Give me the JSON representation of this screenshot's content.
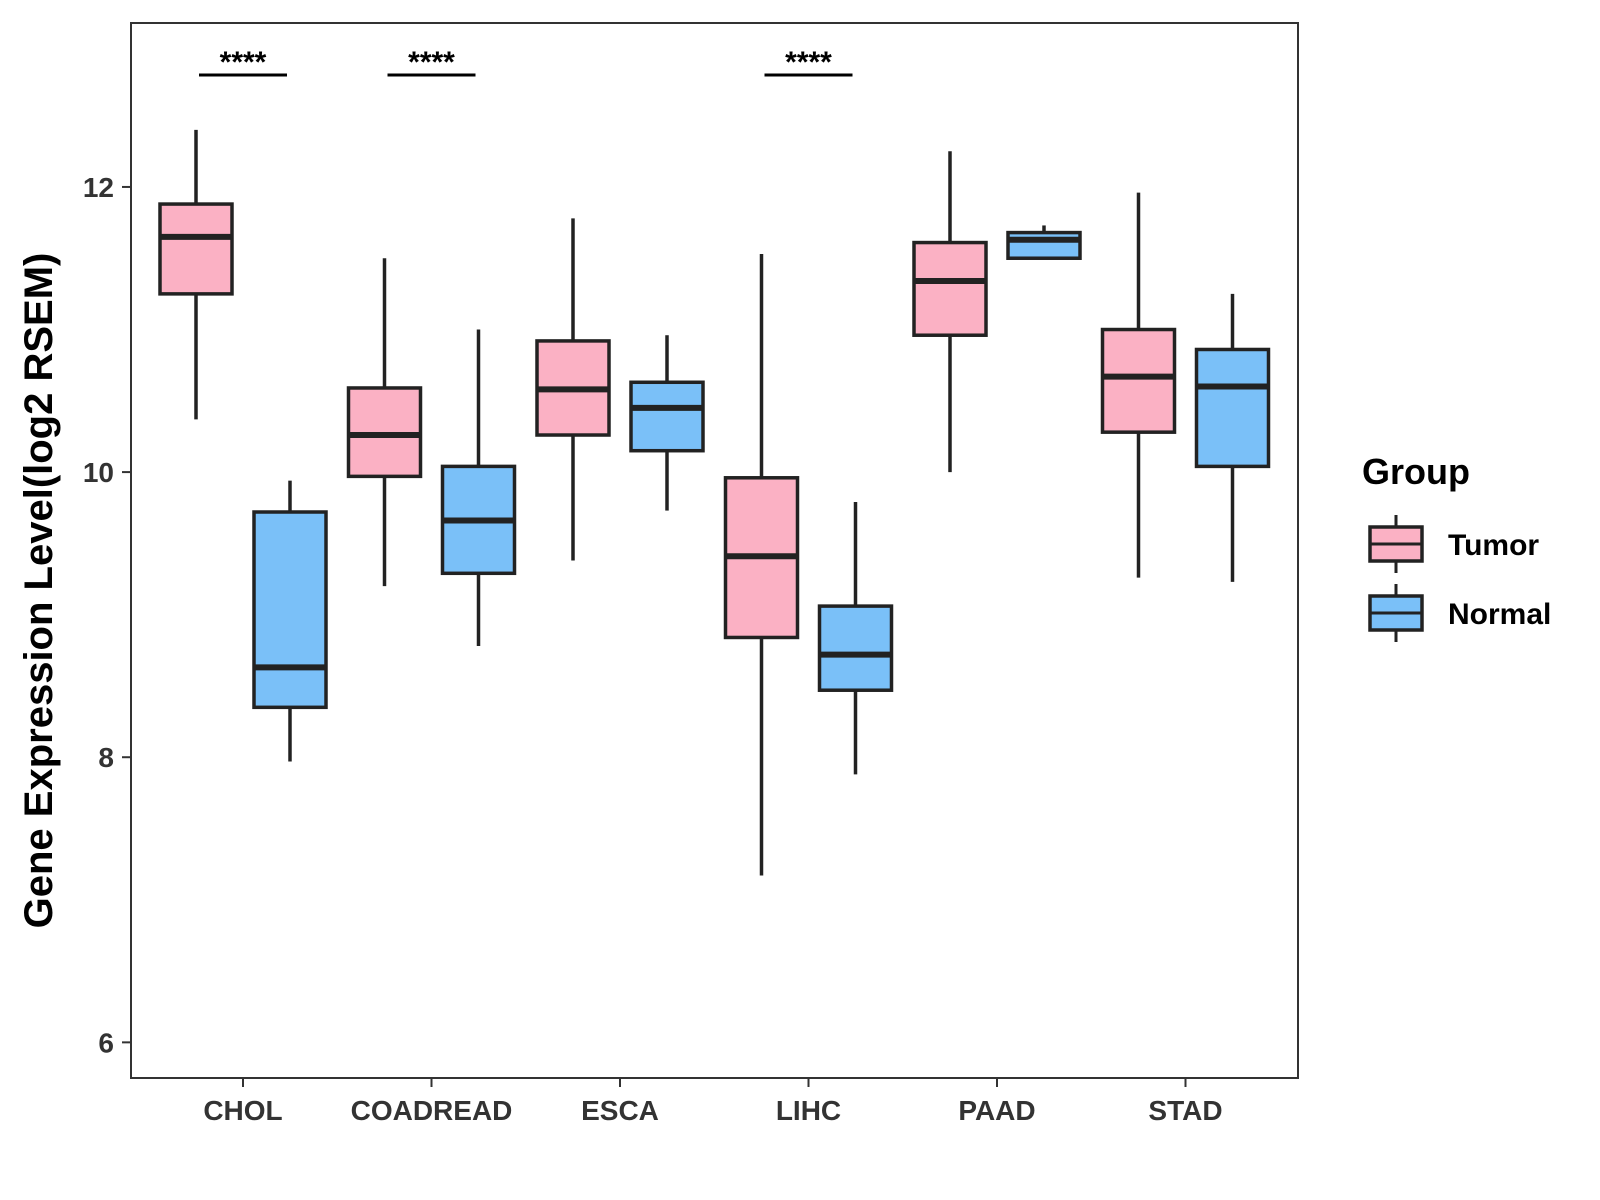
{
  "chart_data": {
    "type": "boxplot",
    "title": "",
    "xlabel": "",
    "ylabel": "Gene Expression Level(log2 RSEM)",
    "ylim": [
      5.75,
      13.15
    ],
    "yticks": [
      "6",
      "8",
      "10",
      "12"
    ],
    "ytick_values": [
      6,
      8,
      10,
      12
    ],
    "categories": [
      "CHOL",
      "COADREAD",
      "ESCA",
      "LIHC",
      "PAAD",
      "STAD"
    ],
    "series": [
      {
        "name": "Tumor",
        "color": "#FBB1C4",
        "boxes": [
          {
            "min": 10.37,
            "q1": 11.25,
            "median": 11.65,
            "q3": 11.88,
            "max": 12.4
          },
          {
            "min": 9.2,
            "q1": 9.97,
            "median": 10.26,
            "q3": 10.59,
            "max": 11.5
          },
          {
            "min": 9.38,
            "q1": 10.26,
            "median": 10.58,
            "q3": 10.92,
            "max": 11.78
          },
          {
            "min": 7.17,
            "q1": 8.84,
            "median": 9.41,
            "q3": 9.96,
            "max": 11.53
          },
          {
            "min": 10.0,
            "q1": 10.96,
            "median": 11.34,
            "q3": 11.61,
            "max": 12.25
          },
          {
            "min": 9.26,
            "q1": 10.28,
            "median": 10.67,
            "q3": 11.0,
            "max": 11.96
          }
        ]
      },
      {
        "name": "Normal",
        "color": "#7AC0F8",
        "boxes": [
          {
            "min": 7.97,
            "q1": 8.35,
            "median": 8.63,
            "q3": 9.72,
            "max": 9.94
          },
          {
            "min": 8.78,
            "q1": 9.29,
            "median": 9.66,
            "q3": 10.04,
            "max": 11.0
          },
          {
            "min": 9.73,
            "q1": 10.15,
            "median": 10.45,
            "q3": 10.63,
            "max": 10.96
          },
          {
            "min": 7.88,
            "q1": 8.47,
            "median": 8.72,
            "q3": 9.06,
            "max": 9.79
          },
          {
            "min": 11.5,
            "q1": 11.5,
            "median": 11.63,
            "q3": 11.68,
            "max": 11.73
          },
          {
            "min": 9.23,
            "q1": 10.04,
            "median": 10.6,
            "q3": 10.86,
            "max": 11.25
          }
        ]
      }
    ],
    "significance": [
      {
        "category": "CHOL",
        "label": "****"
      },
      {
        "category": "COADREAD",
        "label": "****"
      },
      {
        "category": "LIHC",
        "label": "****"
      }
    ],
    "legend": {
      "title": "Group",
      "position": "right",
      "items": [
        "Tumor",
        "Normal"
      ]
    },
    "grid": false
  }
}
